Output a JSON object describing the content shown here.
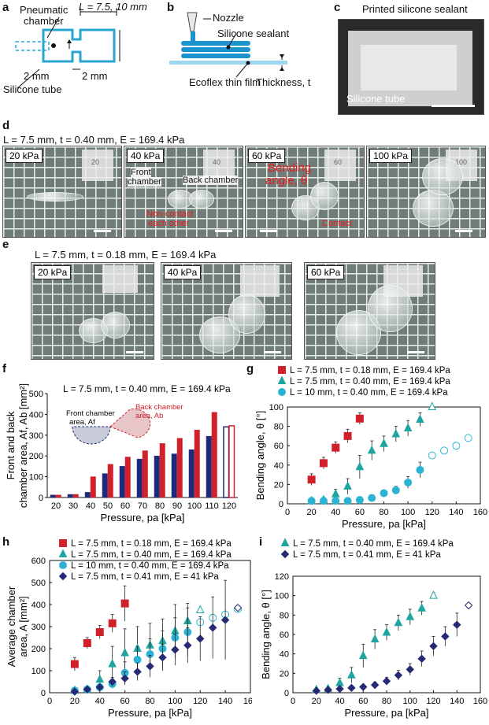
{
  "panels": {
    "a": {
      "label": "a",
      "pneumatic": "Pneumatic",
      "chamber": "chamber",
      "L": "L = 7.5, 10 mm",
      "dim1": "2 mm",
      "dim2": "2 mm",
      "tube": "Silicone tube"
    },
    "b": {
      "label": "b",
      "nozzle": "Nozzle",
      "sealant": "Silicone sealant",
      "film": "Ecoflex thin film",
      "thickness": "Thickness, t"
    },
    "c": {
      "label": "c",
      "printed": "Printed silicone sealant",
      "tube": "Silicone tube"
    },
    "d": {
      "label": "d",
      "header": "L = 7.5 mm, t = 0.40 mm, E = 169.4 kPa",
      "p1": "20 kPa",
      "p2": "40 kPa",
      "p3": "60 kPa",
      "p4": "100 kPa",
      "front": "Front",
      "frontchamber": "chamber",
      "back": "Back chamber",
      "noncontact1": "Non-contact",
      "noncontact2": "each other",
      "bending1": "Bending",
      "bending2": "angle, θ",
      "contact": "Contact",
      "paper1": "20",
      "paper2": "40",
      "paper3": "60",
      "paper4": "100"
    },
    "e": {
      "label": "e",
      "header": "L = 7.5 mm, t = 0.18 mm, E = 169.4 kPa",
      "p1": "20 kPa",
      "p2": "40 kPa",
      "p3": "60 kPa"
    }
  },
  "chart_data": [
    {
      "id": "f",
      "type": "bar",
      "label": "f",
      "title": "L = 7.5 mm, t = 0.40 mm, E = 169.4 kPa",
      "xlabel": "Pressure, pa [kPa]",
      "ylabel1": "Front and back",
      "ylabel2": "chamber area, Af, Ab [mm²]",
      "ylim": [
        0,
        500
      ],
      "yticks": [
        0,
        100,
        200,
        300,
        400,
        500
      ],
      "categories": [
        "20",
        "30",
        "40",
        "50",
        "60",
        "70",
        "80",
        "90",
        "100",
        "110",
        "120"
      ],
      "series": [
        {
          "name": "Front chamber area, Af",
          "color": "#1f2a7a",
          "values": [
            12,
            15,
            25,
            115,
            150,
            185,
            200,
            210,
            230,
            295,
            340
          ]
        },
        {
          "name": "Back chamber area, Ab",
          "color": "#d2202a",
          "values": [
            12,
            15,
            100,
            160,
            195,
            225,
            260,
            285,
            325,
            410,
            345
          ]
        }
      ],
      "inset_front": "Front chamber",
      "inset_front2": "area, Af",
      "inset_back": "Back chamber",
      "inset_back2": "area, Ab"
    },
    {
      "id": "g",
      "type": "scatter",
      "label": "g",
      "xlabel": "Pressure, pa [kPa]",
      "ylabel": "Bending angle, θ [°]",
      "xlim": [
        0,
        160
      ],
      "ylim": [
        0,
        100
      ],
      "xticks": [
        0,
        20,
        40,
        60,
        80,
        100,
        120,
        140,
        160
      ],
      "yticks": [
        0,
        20,
        40,
        60,
        80,
        100
      ],
      "series": [
        {
          "name": "L = 7.5 mm, t = 0.18 mm, E = 169.4 kPa",
          "marker": "square",
          "color": "#d2202a",
          "x": [
            20,
            30,
            40,
            50,
            60
          ],
          "y": [
            25,
            42,
            58,
            70,
            88
          ],
          "err": [
            6,
            6,
            6,
            7,
            6
          ]
        },
        {
          "name": "L = 7.5 mm, t = 0.40 mm, E = 169.4 kPa",
          "marker": "triangle",
          "color": "#1fa5a0",
          "x": [
            20,
            30,
            40,
            50,
            60,
            70,
            80,
            90,
            100,
            110,
            120
          ],
          "y": [
            3,
            4,
            10,
            18,
            38,
            55,
            62,
            72,
            78,
            87,
            100
          ],
          "err": [
            2,
            2,
            5,
            8,
            12,
            10,
            8,
            8,
            8,
            7,
            0
          ]
        },
        {
          "name": "L = 10 mm, t = 0.40 mm, E = 169.4 kPa",
          "marker": "circle",
          "color": "#2bb3d4",
          "x": [
            20,
            30,
            40,
            50,
            60,
            70,
            80,
            90,
            100,
            110,
            120,
            130,
            140,
            150
          ],
          "y": [
            3,
            3,
            3,
            3,
            4,
            6,
            11,
            14,
            22,
            35,
            50,
            55,
            60,
            68
          ],
          "err": [
            1,
            1,
            1,
            1,
            1,
            2,
            3,
            4,
            6,
            8,
            0,
            0,
            0,
            0
          ]
        }
      ]
    },
    {
      "id": "h",
      "type": "scatter",
      "label": "h",
      "xlabel": "Pressure, pa [kPa]",
      "ylabel1": "Average chamber",
      "ylabel2": "area, A [mm²]",
      "xlim": [
        0,
        160
      ],
      "ylim": [
        0,
        600
      ],
      "xticks": [
        0,
        20,
        40,
        60,
        80,
        100,
        120,
        140,
        160
      ],
      "yticks": [
        0,
        100,
        200,
        300,
        400,
        500,
        600
      ],
      "series": [
        {
          "name": "L = 7.5 mm, t = 0.18 mm, E = 169.4 kPa",
          "marker": "square",
          "color": "#d2202a",
          "x": [
            20,
            30,
            40,
            50,
            60
          ],
          "y": [
            130,
            225,
            275,
            315,
            405
          ],
          "err": [
            30,
            25,
            30,
            40,
            80
          ]
        },
        {
          "name": "L = 7.5 mm, t = 0.40 mm, E = 169.4 kPa",
          "marker": "triangle",
          "color": "#1fa5a0",
          "x": [
            20,
            30,
            40,
            50,
            60,
            70,
            80,
            90,
            100,
            110,
            120
          ],
          "y": [
            10,
            15,
            60,
            130,
            180,
            200,
            215,
            235,
            280,
            325,
            375
          ],
          "err": [
            5,
            5,
            40,
            80,
            110,
            100,
            100,
            100,
            120,
            80,
            0
          ]
        },
        {
          "name": "L = 10 mm, t = 0.40 mm, E = 169.4 kPa",
          "marker": "circle",
          "color": "#2bb3d4",
          "x": [
            20,
            30,
            40,
            50,
            60,
            70,
            80,
            90,
            100,
            110,
            120,
            130,
            140,
            150
          ],
          "y": [
            10,
            15,
            25,
            40,
            90,
            150,
            175,
            200,
            250,
            275,
            320,
            340,
            355,
            380
          ],
          "err": [
            5,
            5,
            10,
            20,
            50,
            60,
            70,
            80,
            90,
            110,
            0,
            0,
            0,
            0
          ]
        },
        {
          "name": "L = 7.5 mm, t = 0.41 mm, E = 41 kPa",
          "marker": "diamond",
          "color": "#252a72",
          "x": [
            20,
            30,
            40,
            50,
            60,
            70,
            80,
            90,
            100,
            110,
            120,
            130,
            140,
            150
          ],
          "y": [
            5,
            15,
            25,
            50,
            65,
            95,
            120,
            160,
            195,
            215,
            245,
            295,
            330,
            385
          ],
          "err": [
            5,
            5,
            10,
            20,
            30,
            40,
            50,
            60,
            70,
            80,
            100,
            140,
            180,
            0
          ]
        }
      ]
    },
    {
      "id": "i",
      "type": "scatter",
      "label": "i",
      "xlabel": "Pressure, pa [kPa]",
      "ylabel": "Bending angle, θ [°]",
      "xlim": [
        0,
        160
      ],
      "ylim": [
        0,
        120
      ],
      "xticks": [
        0,
        20,
        40,
        60,
        80,
        100,
        120,
        140,
        160
      ],
      "yticks": [
        0,
        20,
        40,
        60,
        80,
        100,
        120
      ],
      "series": [
        {
          "name": "L = 7.5 mm, t = 0.40 mm, E = 169.4 kPa",
          "marker": "triangle",
          "color": "#1fa5a0",
          "x": [
            20,
            30,
            40,
            50,
            60,
            70,
            80,
            90,
            100,
            110,
            120
          ],
          "y": [
            3,
            4,
            10,
            18,
            38,
            55,
            62,
            72,
            78,
            87,
            100
          ],
          "err": [
            2,
            2,
            5,
            8,
            12,
            10,
            8,
            8,
            8,
            7,
            0
          ]
        },
        {
          "name": "L = 7.5 mm, t = 0.41 mm, E = 41 kPa",
          "marker": "diamond",
          "color": "#252a72",
          "x": [
            20,
            30,
            40,
            50,
            60,
            70,
            80,
            90,
            100,
            110,
            120,
            130,
            140,
            150
          ],
          "y": [
            2,
            3,
            4,
            5,
            6,
            8,
            12,
            18,
            24,
            35,
            48,
            58,
            70,
            90
          ],
          "err": [
            1,
            1,
            2,
            2,
            2,
            3,
            4,
            5,
            6,
            8,
            10,
            10,
            12,
            0
          ]
        }
      ]
    }
  ]
}
